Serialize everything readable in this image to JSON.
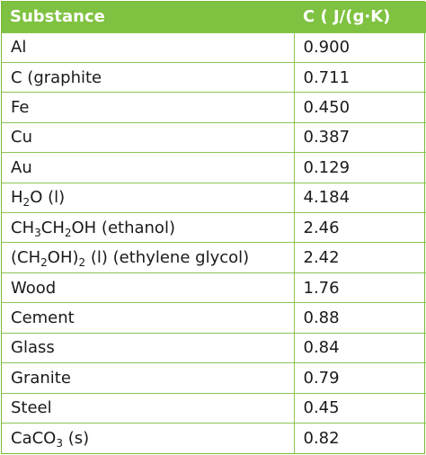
{
  "table": {
    "headers": [
      "Substance",
      "C ( J/(g·K)"
    ],
    "rows": [
      {
        "substance": "Al",
        "value": "0.900"
      },
      {
        "substance": "C (graphite",
        "value": "0.711"
      },
      {
        "substance": "Fe",
        "value": "0.450"
      },
      {
        "substance": "Cu",
        "value": "0.387"
      },
      {
        "substance": "Au",
        "value": "0.129"
      },
      {
        "substance_parts": [
          "H",
          "2",
          "O (l)"
        ],
        "value": "4.184"
      },
      {
        "substance_parts": [
          "CH",
          "3",
          "CH",
          "2",
          "OH (ethanol)"
        ],
        "value": "2.46"
      },
      {
        "substance_parts": [
          "(CH",
          "2",
          "OH)",
          "2",
          " (l) (ethylene glycol)"
        ],
        "value": "2.42"
      },
      {
        "substance": "Wood",
        "value": "1.76"
      },
      {
        "substance": "Cement",
        "value": "0.88"
      },
      {
        "substance": "Glass",
        "value": "0.84"
      },
      {
        "substance": "Granite",
        "value": "0.79"
      },
      {
        "substance": "Steel",
        "value": "0.45"
      },
      {
        "substance_parts": [
          "CaCO",
          "3",
          " (s)"
        ],
        "value": "0.82"
      }
    ]
  },
  "colors": {
    "header_bg": "#7fc241",
    "border": "#8cc357",
    "header_text": "#ffffff",
    "body_text": "#1a1a1a"
  }
}
